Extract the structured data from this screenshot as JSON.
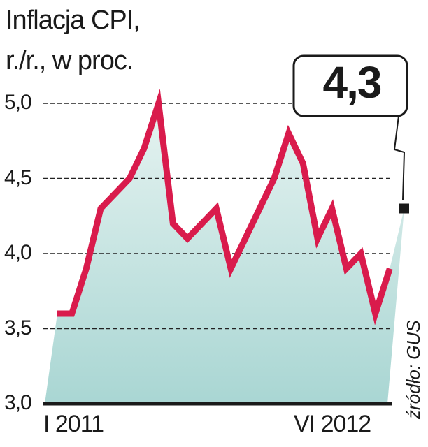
{
  "chart_data": {
    "type": "area",
    "title": "Inflacja CPI,",
    "subtitle": "r./r., w proc.",
    "source": "źródło: GUS",
    "x_start_label": "I 2011",
    "x_end_label": "VI 2012",
    "y_ticks": [
      "3,0",
      "3,5",
      "4,0",
      "4,5",
      "5,0"
    ],
    "ylim": [
      3.0,
      5.0
    ],
    "grid": true,
    "callout": "4,3",
    "values": [
      3.6,
      3.6,
      3.9,
      4.3,
      4.4,
      4.5,
      4.7,
      5.0,
      4.2,
      4.1,
      4.2,
      4.3,
      3.9,
      4.1,
      4.3,
      4.5,
      4.8,
      4.6,
      4.1,
      4.3,
      3.9,
      4.0,
      3.6,
      3.9,
      4.3
    ],
    "colors": {
      "line": "#d91b4c",
      "area_top": "#e6f3f1",
      "area_bottom": "#a9d6d3",
      "last_point": "#1a1a1a"
    }
  }
}
